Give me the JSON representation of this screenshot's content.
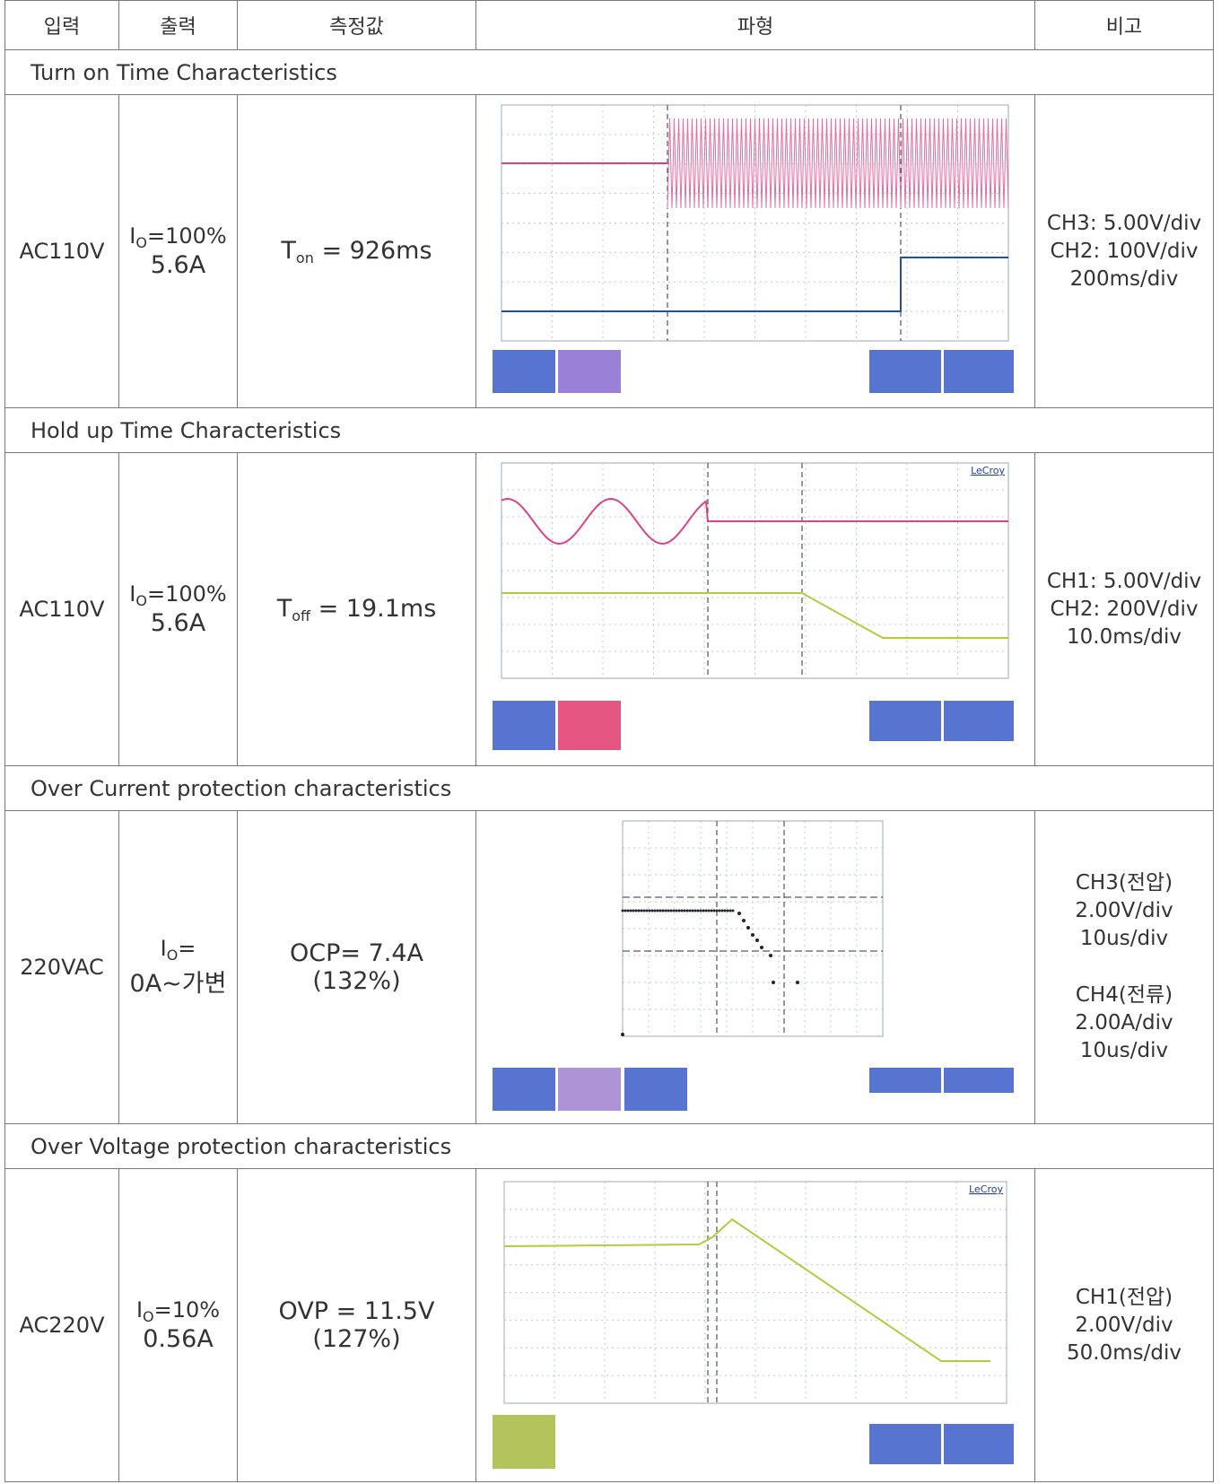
{
  "header": [
    "입력",
    "출력",
    "측정값",
    "파형",
    "비고"
  ],
  "sections": [
    {
      "title": "Turn on Time Characteristics",
      "input": "AC110V",
      "output": {
        "symbol": "I",
        "sub": "O",
        "rest": "=100%",
        "line2": "5.6A"
      },
      "measure": {
        "symbol": "T",
        "sub": "on",
        "rest": " = 926ms"
      },
      "notes": [
        [
          "CH3: 5.00V/div",
          "CH2: 100V/div",
          "200ms/div"
        ]
      ]
    },
    {
      "title": "Hold up Time Characteristics",
      "input": "AC110V",
      "output": {
        "symbol": "I",
        "sub": "O",
        "rest": "=100%",
        "line2": "5.6A"
      },
      "measure": {
        "symbol": "T",
        "sub": "off",
        "rest": " = 19.1ms"
      },
      "scope_brand": "LeCroy",
      "notes": [
        [
          "CH1: 5.00V/div",
          "CH2: 200V/div",
          "10.0ms/div"
        ]
      ]
    },
    {
      "title": "Over Current protection characteristics",
      "input": "220VAC",
      "output": {
        "symbol": "I",
        "sub": "O",
        "rest": "=",
        "line2": "0A~가변"
      },
      "measure": {
        "rest": "OCP= 7.4A",
        "line2": "(132%)"
      },
      "notes": [
        [
          "CH3(전압)",
          "2.00V/div",
          "10us/div"
        ],
        [
          "CH4(전류)",
          "2.00A/div",
          "10us/div"
        ]
      ]
    },
    {
      "title": "Over Voltage protection characteristics",
      "input": "AC220V",
      "output": {
        "symbol": "I",
        "sub": "O",
        "rest": "=10%",
        "line2": "0.56A"
      },
      "measure": {
        "rest": "OVP = 11.5V",
        "line2": "(127%)"
      },
      "scope_brand": "LeCroy",
      "notes": [
        [
          "CH1(전압)",
          "2.00V/div",
          "50.0ms/div"
        ]
      ]
    }
  ]
}
